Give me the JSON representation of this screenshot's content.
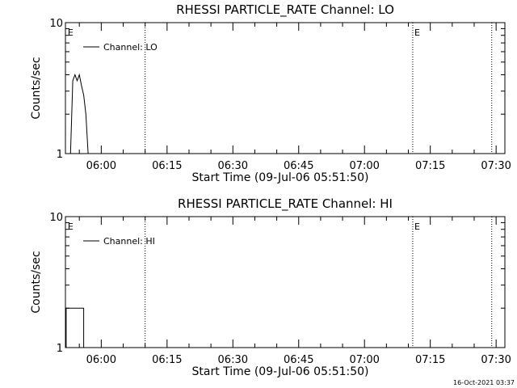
{
  "chart_data": [
    {
      "type": "line",
      "title": "RHESSI PARTICLE_RATE Channel: LO",
      "xlabel": "Start Time (09-Jul-06 05:51:50)",
      "ylabel": "Counts/sec",
      "y_scale": "log",
      "ylim": [
        1,
        10
      ],
      "y_ticks": [
        "1",
        "10"
      ],
      "x_ticks": [
        "06:00",
        "06:15",
        "06:30",
        "06:45",
        "07:00",
        "07:15",
        "07:30"
      ],
      "legend": {
        "label": "Channel: LO",
        "placement": "top-left"
      },
      "grid": false,
      "event_markers": {
        "label": "E",
        "times": [
          "05:52",
          "07:11"
        ]
      },
      "dotted_lines": [
        "06:10",
        "07:11",
        "07:29"
      ],
      "series": [
        {
          "name": "Channel: LO",
          "points": [
            [
              "05:53:00",
              1.0
            ],
            [
              "05:53:30",
              3.6
            ],
            [
              "05:54:00",
              4.0
            ],
            [
              "05:54:30",
              3.6
            ],
            [
              "05:55:00",
              4.0
            ],
            [
              "05:55:30",
              3.3
            ],
            [
              "05:56:00",
              2.8
            ],
            [
              "05:56:30",
              2.0
            ],
            [
              "05:57:00",
              1.0
            ]
          ]
        }
      ]
    },
    {
      "type": "line",
      "title": "RHESSI PARTICLE_RATE Channel: HI",
      "xlabel": "Start Time (09-Jul-06 05:51:50)",
      "ylabel": "Counts/sec",
      "y_scale": "log",
      "ylim": [
        1,
        10
      ],
      "y_ticks": [
        "1",
        "10"
      ],
      "x_ticks": [
        "06:00",
        "06:15",
        "06:30",
        "06:45",
        "07:00",
        "07:15",
        "07:30"
      ],
      "legend": {
        "label": "Channel: HI",
        "placement": "top-left"
      },
      "grid": false,
      "event_markers": {
        "label": "E",
        "times": [
          "05:52",
          "07:11"
        ]
      },
      "dotted_lines": [
        "06:10",
        "07:11",
        "07:29"
      ],
      "series": [
        {
          "name": "Channel: HI",
          "points": [
            [
              "05:52:00",
              1.0
            ],
            [
              "05:52:00",
              2.0
            ],
            [
              "05:54:00",
              2.0
            ],
            [
              "05:54:00",
              2.0
            ],
            [
              "05:56:00",
              2.0
            ],
            [
              "05:56:00",
              1.0
            ]
          ]
        }
      ]
    }
  ],
  "footer": {
    "timestamp": "16-Oct-2021 03:37"
  }
}
